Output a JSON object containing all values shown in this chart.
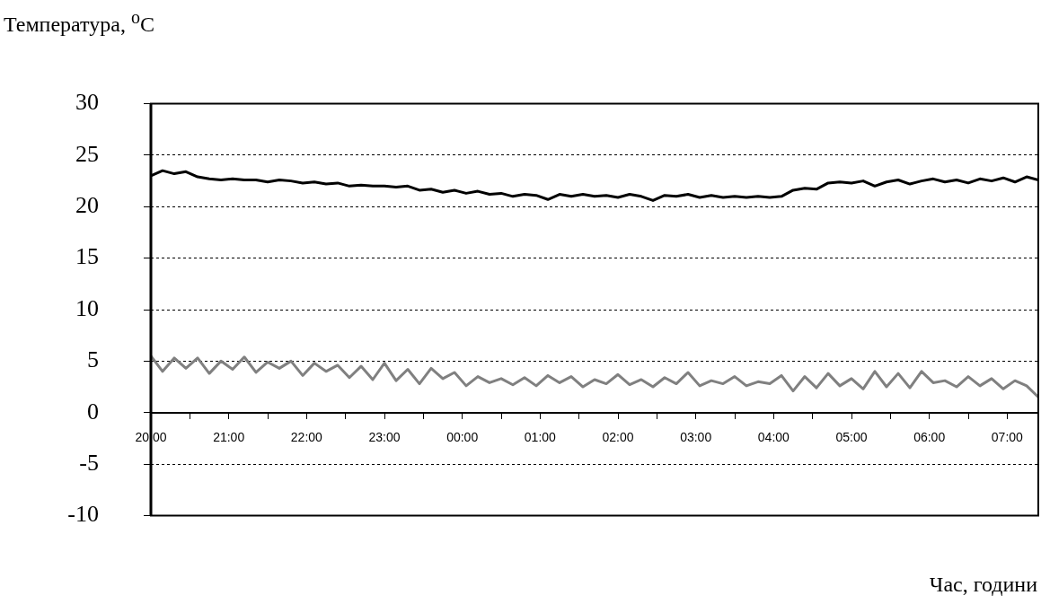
{
  "chart_data": {
    "type": "line",
    "xlabel": "Час, години",
    "ylabel": "Температура, $^{o}$C",
    "xlim": [
      "2000-01-01T20:00",
      "2000-01-02T07:24"
    ],
    "ylim": [
      -10,
      30
    ],
    "yticks": [
      -10,
      -5,
      0,
      5,
      10,
      15,
      20,
      25,
      30
    ],
    "xticks": [
      {
        "value": "2000-01-01T20:00",
        "label": "20:00"
      },
      {
        "value": "2000-01-01T20:30",
        "label": null
      },
      {
        "value": "2000-01-01T21:00",
        "label": "21:00"
      },
      {
        "value": "2000-01-01T21:30",
        "label": null
      },
      {
        "value": "2000-01-01T22:00",
        "label": "22:00"
      },
      {
        "value": "2000-01-01T22:30",
        "label": null
      },
      {
        "value": "2000-01-01T23:00",
        "label": "23:00"
      },
      {
        "value": "2000-01-01T23:30",
        "label": null
      },
      {
        "value": "2000-01-02T00:00",
        "label": "00:00"
      },
      {
        "value": "2000-01-02T00:30",
        "label": null
      },
      {
        "value": "2000-01-02T01:00",
        "label": "01:00"
      },
      {
        "value": "2000-01-02T01:30",
        "label": null
      },
      {
        "value": "2000-01-02T02:00",
        "label": "02:00"
      },
      {
        "value": "2000-01-02T02:30",
        "label": null
      },
      {
        "value": "2000-01-02T03:00",
        "label": "03:00"
      },
      {
        "value": "2000-01-02T03:30",
        "label": null
      },
      {
        "value": "2000-01-02T04:00",
        "label": "04:00"
      },
      {
        "value": "2000-01-02T04:30",
        "label": null
      },
      {
        "value": "2000-01-02T05:00",
        "label": "05:00"
      },
      {
        "value": "2000-01-02T05:30",
        "label": null
      },
      {
        "value": "2000-01-02T06:00",
        "label": "06:00"
      },
      {
        "value": "2000-01-02T06:30",
        "label": null
      },
      {
        "value": "2000-01-02T07:00",
        "label": "07:00"
      }
    ],
    "x": [
      "2000-01-01T20:00",
      "2000-01-01T20:09",
      "2000-01-01T20:18",
      "2000-01-01T20:27",
      "2000-01-01T20:36",
      "2000-01-01T20:45",
      "2000-01-01T20:54",
      "2000-01-01T21:03",
      "2000-01-01T21:12",
      "2000-01-01T21:21",
      "2000-01-01T21:30",
      "2000-01-01T21:39",
      "2000-01-01T21:48",
      "2000-01-01T21:57",
      "2000-01-01T22:06",
      "2000-01-01T22:15",
      "2000-01-01T22:24",
      "2000-01-01T22:33",
      "2000-01-01T22:42",
      "2000-01-01T22:51",
      "2000-01-01T23:00",
      "2000-01-01T23:09",
      "2000-01-01T23:18",
      "2000-01-01T23:27",
      "2000-01-01T23:36",
      "2000-01-01T23:45",
      "2000-01-01T23:54",
      "2000-01-02T00:03",
      "2000-01-02T00:12",
      "2000-01-02T00:21",
      "2000-01-02T00:30",
      "2000-01-02T00:39",
      "2000-01-02T00:48",
      "2000-01-02T00:57",
      "2000-01-02T01:06",
      "2000-01-02T01:15",
      "2000-01-02T01:24",
      "2000-01-02T01:33",
      "2000-01-02T01:42",
      "2000-01-02T01:51",
      "2000-01-02T02:00",
      "2000-01-02T02:09",
      "2000-01-02T02:18",
      "2000-01-02T02:27",
      "2000-01-02T02:36",
      "2000-01-02T02:45",
      "2000-01-02T02:54",
      "2000-01-02T03:03",
      "2000-01-02T03:12",
      "2000-01-02T03:21",
      "2000-01-02T03:30",
      "2000-01-02T03:39",
      "2000-01-02T03:48",
      "2000-01-02T03:57",
      "2000-01-02T04:06",
      "2000-01-02T04:15",
      "2000-01-02T04:24",
      "2000-01-02T04:33",
      "2000-01-02T04:42",
      "2000-01-02T04:51",
      "2000-01-02T05:00",
      "2000-01-02T05:09",
      "2000-01-02T05:18",
      "2000-01-02T05:27",
      "2000-01-02T05:36",
      "2000-01-02T05:45",
      "2000-01-02T05:54",
      "2000-01-02T06:03",
      "2000-01-02T06:12",
      "2000-01-02T06:21",
      "2000-01-02T06:30",
      "2000-01-02T06:39",
      "2000-01-02T06:48",
      "2000-01-02T06:57",
      "2000-01-02T07:06",
      "2000-01-02T07:15",
      "2000-01-02T07:24"
    ],
    "series": [
      {
        "color": "#000000",
        "values": [
          23.0,
          23.5,
          23.2,
          23.4,
          22.9,
          22.7,
          22.6,
          22.7,
          22.6,
          22.6,
          22.4,
          22.6,
          22.5,
          22.3,
          22.4,
          22.2,
          22.3,
          22.0,
          22.1,
          22.0,
          22.0,
          21.9,
          22.0,
          21.6,
          21.7,
          21.4,
          21.6,
          21.3,
          21.5,
          21.2,
          21.3,
          21.0,
          21.2,
          21.1,
          20.7,
          21.2,
          21.0,
          21.2,
          21.0,
          21.1,
          20.9,
          21.2,
          21.0,
          20.6,
          21.1,
          21.0,
          21.2,
          20.9,
          21.1,
          20.9,
          21.0,
          20.9,
          21.0,
          20.9,
          21.0,
          21.6,
          21.8,
          21.7,
          22.3,
          22.4,
          22.3,
          22.5,
          22.0,
          22.4,
          22.6,
          22.2,
          22.5,
          22.7,
          22.4,
          22.6,
          22.3,
          22.7,
          22.5,
          22.8,
          22.4,
          22.9,
          22.6
        ]
      },
      {
        "color": "#808080",
        "values": [
          5.5,
          4.0,
          5.3,
          4.3,
          5.3,
          3.8,
          5.0,
          4.2,
          5.4,
          3.9,
          4.9,
          4.3,
          5.0,
          3.6,
          4.8,
          4.0,
          4.6,
          3.4,
          4.5,
          3.2,
          4.8,
          3.1,
          4.2,
          2.8,
          4.3,
          3.3,
          3.9,
          2.6,
          3.5,
          2.9,
          3.3,
          2.7,
          3.4,
          2.6,
          3.6,
          2.9,
          3.5,
          2.5,
          3.2,
          2.8,
          3.7,
          2.7,
          3.2,
          2.5,
          3.4,
          2.8,
          3.9,
          2.6,
          3.1,
          2.8,
          3.5,
          2.6,
          3.0,
          2.8,
          3.6,
          2.1,
          3.5,
          2.4,
          3.8,
          2.6,
          3.3,
          2.3,
          4.0,
          2.5,
          3.8,
          2.4,
          4.0,
          2.9,
          3.1,
          2.5,
          3.5,
          2.6,
          3.3,
          2.3,
          3.1,
          2.6,
          1.5
        ]
      }
    ],
    "grid": "y",
    "marker": "none",
    "line_style": "solid"
  }
}
